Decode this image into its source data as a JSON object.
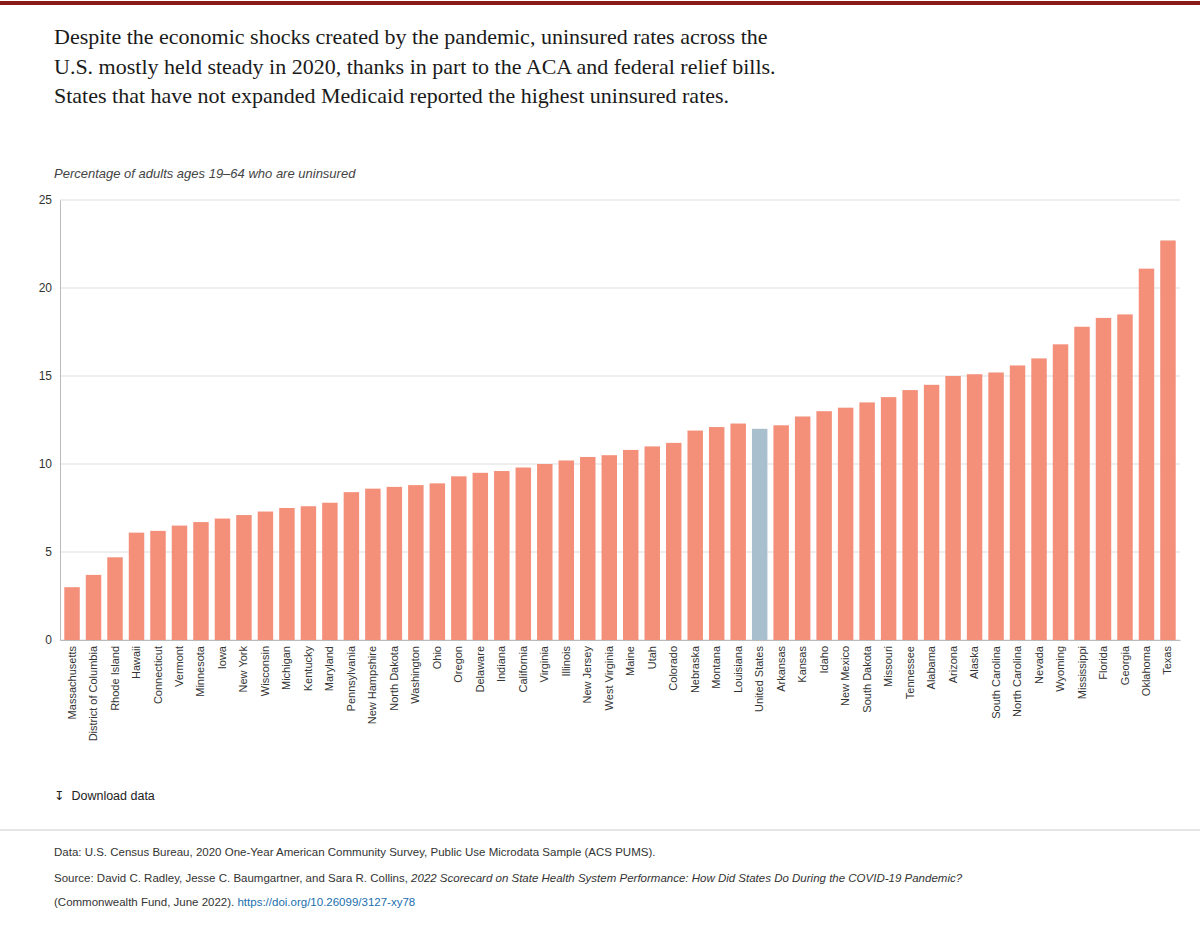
{
  "chart_data": {
    "type": "bar",
    "title": "Despite the economic shocks created by the pandemic, uninsured rates across the\nU.S. mostly held steady in 2020, thanks in part to the ACA and federal relief bills.\nStates that have not expanded Medicaid reported the highest uninsured rates.",
    "subtitle": "Percentage of adults ages 19–64 who are uninsured",
    "categories": [
      "Massachusetts",
      "District of Columbia",
      "Rhode Island",
      "Hawaii",
      "Connecticut",
      "Vermont",
      "Minnesota",
      "Iowa",
      "New York",
      "Wisconsin",
      "Michigan",
      "Kentucky",
      "Maryland",
      "Pennsylvania",
      "New Hampshire",
      "North Dakota",
      "Washington",
      "Ohio",
      "Oregon",
      "Delaware",
      "Indiana",
      "California",
      "Virginia",
      "Illinois",
      "New Jersey",
      "West Virginia",
      "Maine",
      "Utah",
      "Colorado",
      "Nebraska",
      "Montana",
      "Louisiana",
      "United States",
      "Arkansas",
      "Kansas",
      "Idaho",
      "New Mexico",
      "South Dakota",
      "Missouri",
      "Tennessee",
      "Alabama",
      "Arizona",
      "Alaska",
      "South Carolina",
      "North Carolina",
      "Nevada",
      "Wyoming",
      "Mississippi",
      "Florida",
      "Georgia",
      "Oklahoma",
      "Texas"
    ],
    "values": [
      3.0,
      3.7,
      4.7,
      6.1,
      6.2,
      6.5,
      6.7,
      6.9,
      7.1,
      7.3,
      7.5,
      7.6,
      7.8,
      8.4,
      8.6,
      8.7,
      8.8,
      8.9,
      9.3,
      9.5,
      9.6,
      9.8,
      10.0,
      10.2,
      10.4,
      10.5,
      10.8,
      11.0,
      11.2,
      11.9,
      12.1,
      12.3,
      12.0,
      12.2,
      12.7,
      13.0,
      13.2,
      13.5,
      13.8,
      14.2,
      14.5,
      15.0,
      15.1,
      15.2,
      15.6,
      16.0,
      16.8,
      17.8,
      18.3,
      18.5,
      21.1,
      22.7
    ],
    "colors": [
      "#F4907A",
      "#F4907A",
      "#F4907A",
      "#F4907A",
      "#F4907A",
      "#F4907A",
      "#F4907A",
      "#F4907A",
      "#F4907A",
      "#F4907A",
      "#F4907A",
      "#F4907A",
      "#F4907A",
      "#F4907A",
      "#F4907A",
      "#F4907A",
      "#F4907A",
      "#F4907A",
      "#F4907A",
      "#F4907A",
      "#F4907A",
      "#F4907A",
      "#F4907A",
      "#F4907A",
      "#F4907A",
      "#F4907A",
      "#F4907A",
      "#F4907A",
      "#F4907A",
      "#F4907A",
      "#F4907A",
      "#F4907A",
      "#A8BFCE",
      "#F4907A",
      "#F4907A",
      "#F4907A",
      "#F4907A",
      "#F4907A",
      "#F4907A",
      "#F4907A",
      "#F4907A",
      "#F4907A",
      "#F4907A",
      "#F4907A",
      "#F4907A",
      "#F4907A",
      "#F4907A",
      "#F4907A",
      "#F4907A",
      "#F4907A",
      "#F4907A",
      "#F4907A"
    ],
    "ylim": [
      0,
      25
    ],
    "yticks": [
      0,
      5,
      10,
      15,
      20,
      25
    ],
    "grid": true,
    "annotations": [
      "↧  Download data",
      "Data: U.S. Census Bureau, 2020 One-Year American Community Survey, Public Use Microdata Sample (ACS PUMS).",
      "Source: David C. Radley, Jesse C. Baumgartner, and Sara R. Collins, ",
      "2022 Scorecard on State Health System Performance: How Did States Do During the COVID-19 Pandemic?",
      "(Commonwealth Fund, June 2022). ",
      "https://doi.org/10.26099/3127-xy78"
    ]
  }
}
